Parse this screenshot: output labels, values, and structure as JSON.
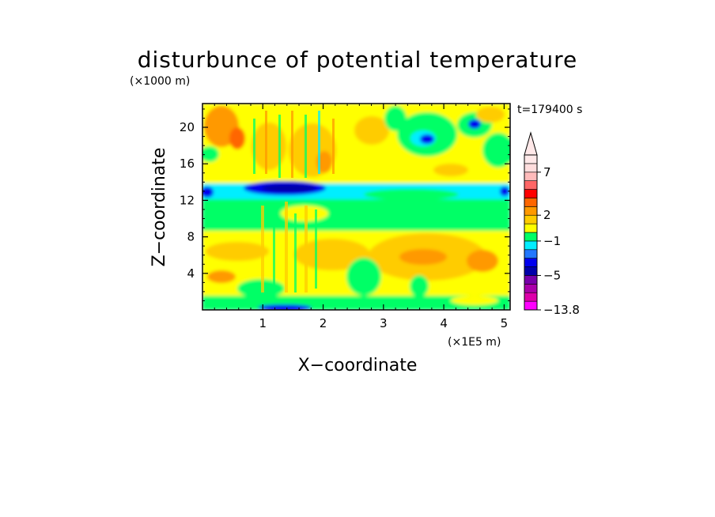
{
  "chart_data": {
    "type": "heatmap",
    "title": "disturbunce of potential temperature",
    "time_label": "t=179400 s",
    "xlabel": "X−coordinate",
    "ylabel": "Z−coordinate",
    "x_unit": "(×1E5 m)",
    "y_unit": "(×1000 m)",
    "xlim": [
      0,
      5.1
    ],
    "ylim": [
      0,
      22.6
    ],
    "xticks": [
      "1",
      "2",
      "3",
      "4",
      "5"
    ],
    "yticks": [
      "4",
      "8",
      "12",
      "16",
      "20"
    ],
    "colorbar": {
      "levels": [
        -13.8,
        -11,
        -9,
        -7,
        -5,
        -4,
        -3,
        -2,
        -1,
        0,
        1,
        2,
        3,
        4,
        5,
        6,
        7,
        9,
        11
      ],
      "colors": [
        "#ff00ff",
        "#dd00aa",
        "#aa00aa",
        "#7700aa",
        "#0000aa",
        "#0000ee",
        "#2277ff",
        "#00eeff",
        "#00ff66",
        "#ffff00",
        "#ffcc00",
        "#ff9900",
        "#ff6600",
        "#ff0000",
        "#ff6666",
        "#ffbbbb",
        "#ffdddd",
        "#ffe8e8"
      ],
      "tick_labels": [
        "7",
        "2",
        "−1",
        "−5",
        "−13.8"
      ],
      "extend": "max"
    },
    "field_description_levels": {
      "near_surface_z_0_1": "near 0 to 1",
      "lower_layer_z_1_8": "1 to 3",
      "mid_band_z_8_12": "0 to −1",
      "cold_band_z_12_14": "−1 to −5",
      "upper_layer_z_14_22": "0 to 3"
    }
  }
}
